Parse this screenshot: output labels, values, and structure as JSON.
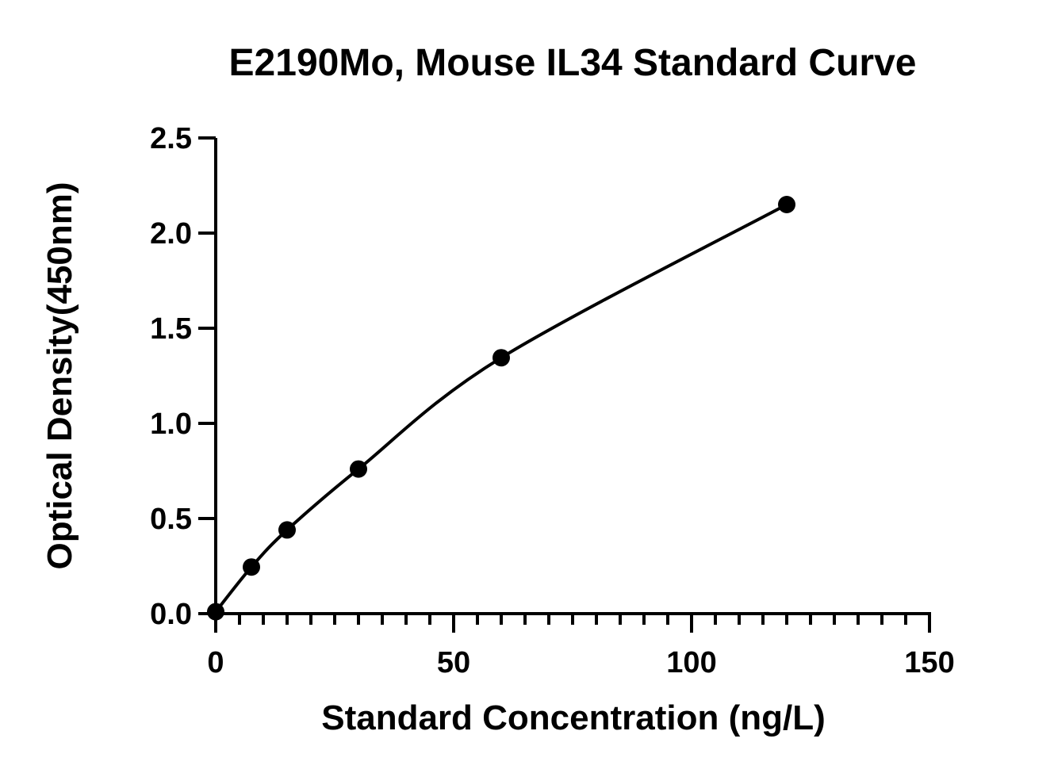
{
  "chart_data": {
    "type": "scatter",
    "title": "E2190Mo, Mouse IL34 Standard Curve",
    "xlabel": "Standard Concentration (ng/L)",
    "ylabel": "Optical Density(450nm)",
    "xlim": [
      0,
      150
    ],
    "ylim": [
      0,
      2.5
    ],
    "x_ticks": [
      "0",
      "50",
      "100",
      "150"
    ],
    "y_ticks": [
      "0.0",
      "0.5",
      "1.0",
      "1.5",
      "2.0",
      "2.5"
    ],
    "x_minor_step": 5,
    "grid": false,
    "legend": "none",
    "fit_curve": true,
    "series": [
      {
        "x": [
          0,
          7.5,
          15,
          30,
          60,
          120
        ],
        "y": [
          0.01,
          0.245,
          0.44,
          0.76,
          1.345,
          2.15
        ]
      }
    ]
  },
  "colors": {
    "points": "#000000",
    "curve": "#000000",
    "axes": "#000000"
  }
}
